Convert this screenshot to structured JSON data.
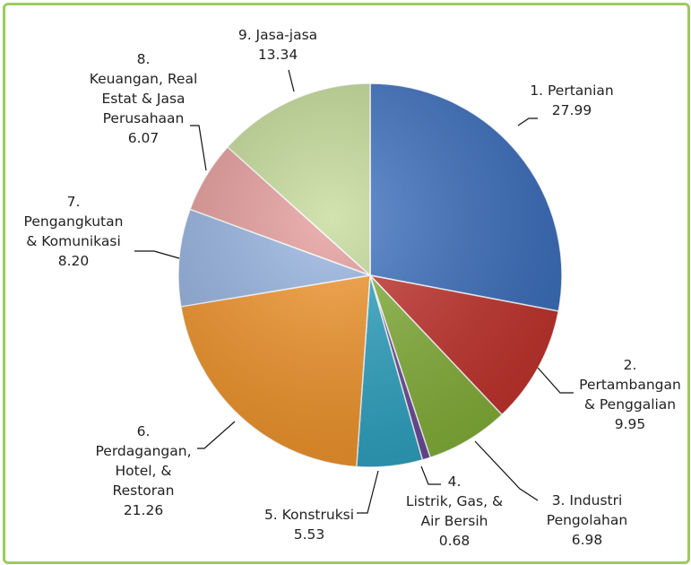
{
  "chart_data": {
    "type": "pie",
    "categories": [
      "1. Pertanian",
      "2.\nPertambangan\n& Penggalian",
      "3. Industri\nPengolahan",
      "4.\nListrik, Gas, &\nAir Bersih",
      "5. Konstruksi",
      "6.\nPerdagangan,\nHotel, &\nRestoran",
      "7.\nPengangkutan\n& Komunikasi",
      "8.\nKeuangan, Real\nEstat & Jasa\nPerusahaan",
      "9. Jasa-jasa"
    ],
    "values": [
      27.99,
      9.95,
      6.98,
      0.68,
      5.53,
      21.26,
      8.2,
      6.07,
      13.34
    ],
    "value_labels": [
      "27.99",
      "9.95",
      "6.98",
      "0.68",
      "5.53",
      "21.26",
      "8.20",
      "6.07",
      "13.34"
    ],
    "colors": [
      "#3a6fc0",
      "#c6332d",
      "#86b33a",
      "#6a4c9c",
      "#2ea5c4",
      "#f5962a",
      "#95b3e2",
      "#e59a98",
      "#c3da96"
    ]
  }
}
